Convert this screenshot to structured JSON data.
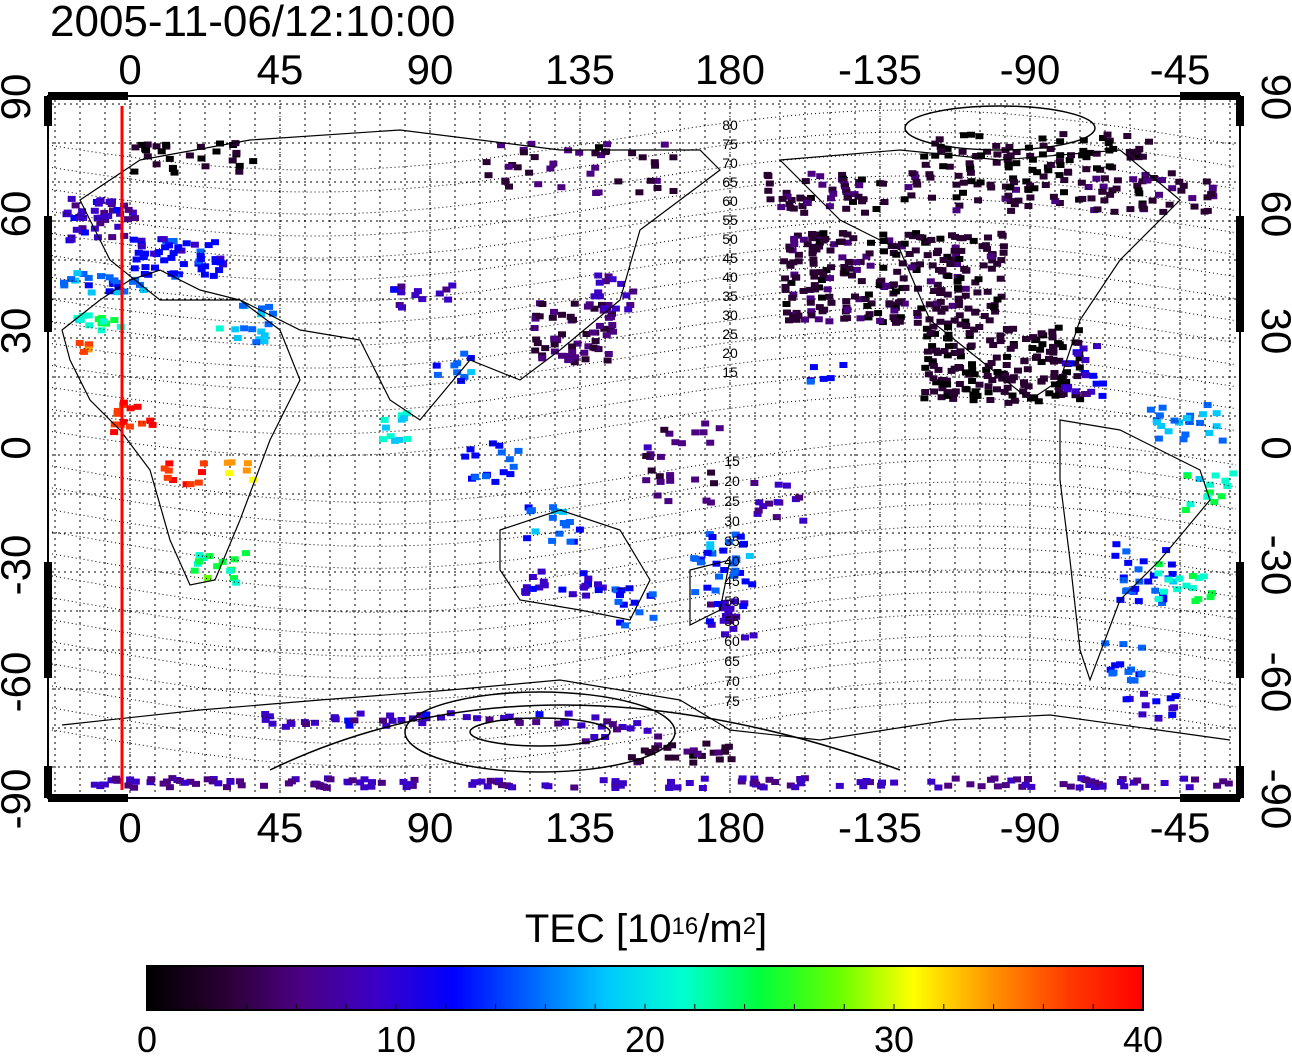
{
  "timestamp": "2005-11-06/12:10:00",
  "map": {
    "lon_tick_labels": [
      "0",
      "45",
      "90",
      "135",
      "180",
      "-135",
      "-90",
      "-45"
    ],
    "lat_tick_labels": [
      "90",
      "60",
      "30",
      "0",
      "-30",
      "-60",
      "-90"
    ],
    "terminator_line_color": "#ff0000",
    "contour_labels_north": [
      "80",
      "75",
      "70",
      "65",
      "60",
      "55",
      "50",
      "45",
      "40",
      "35",
      "30",
      "25",
      "20",
      "15"
    ],
    "contour_labels_south": [
      "15",
      "20",
      "25",
      "30",
      "35",
      "40",
      "45",
      "50",
      "55",
      "60",
      "65",
      "70",
      "75"
    ]
  },
  "colorbar": {
    "title_main": "TEC  [10",
    "title_exp1": "16",
    "title_mid": "/m",
    "title_exp2": "2",
    "title_end": "]",
    "tick_labels": [
      "0",
      "10",
      "20",
      "30",
      "40"
    ],
    "range": [
      0,
      40
    ],
    "colors": [
      "#000000",
      "#2a0033",
      "#4b0082",
      "#3b00c8",
      "#0000ff",
      "#0064ff",
      "#00c8ff",
      "#00ffd0",
      "#00ff3c",
      "#64ff00",
      "#ffff00",
      "#ff9600",
      "#ff3c00",
      "#ff0000"
    ]
  }
}
